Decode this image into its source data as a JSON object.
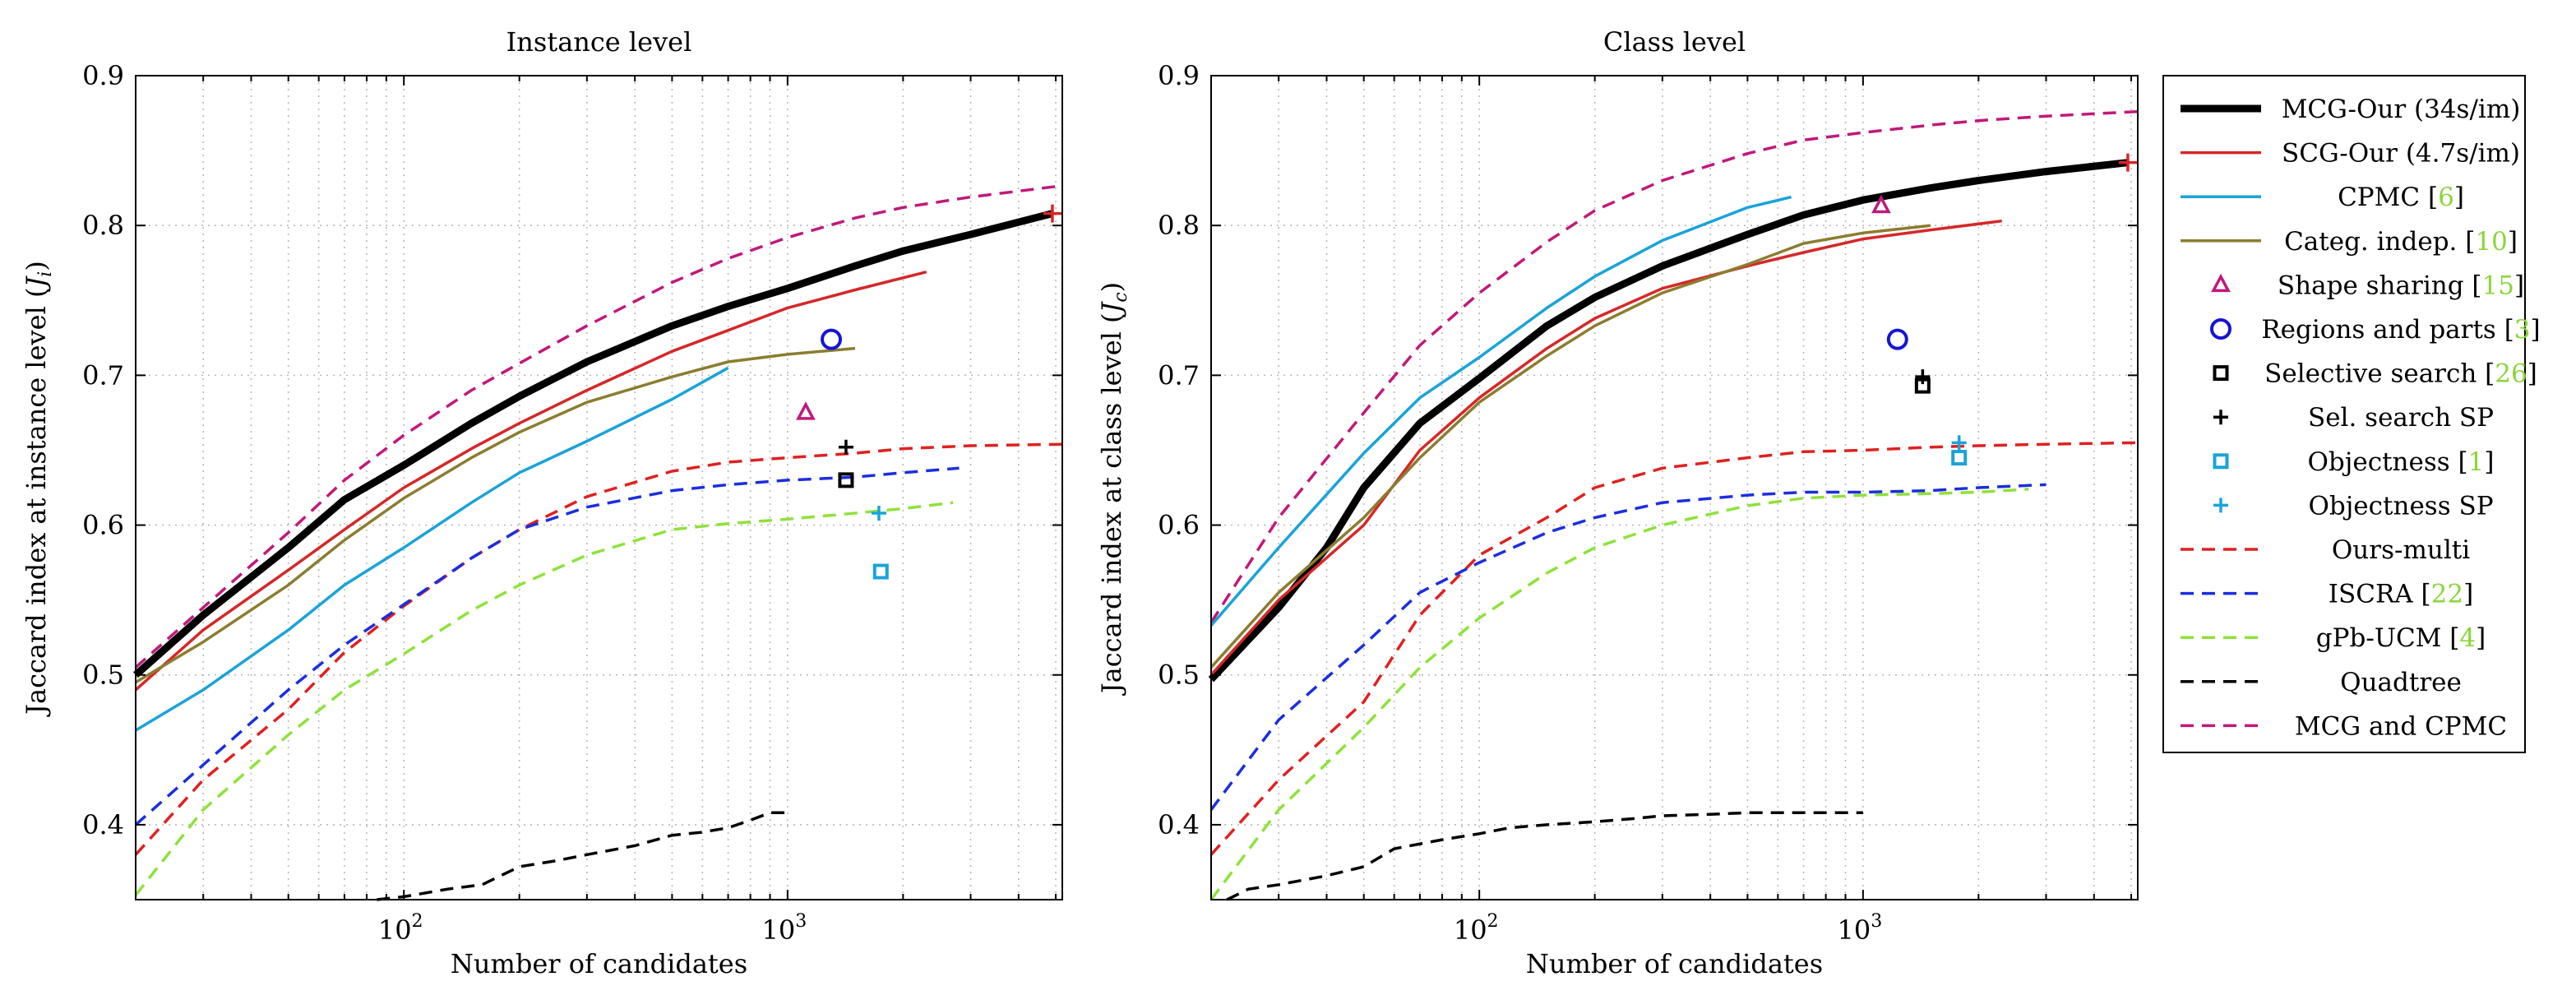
{
  "chart_data": {
    "type": "line",
    "xscale": "log",
    "xlim": [
      20,
      5200
    ],
    "ylim": [
      0.35,
      0.9
    ],
    "xticks": [
      100,
      1000
    ],
    "xtick_labels": [
      {
        "base": "10",
        "exp": "2"
      },
      {
        "base": "10",
        "exp": "3"
      }
    ],
    "yticks": [
      0.4,
      0.5,
      0.6,
      0.7,
      0.8,
      0.9
    ],
    "ytick_labels": [
      "0.4",
      "0.5",
      "0.6",
      "0.7",
      "0.8",
      "0.9"
    ],
    "grid": "dotted",
    "legend_position": "outside-right",
    "legend": [
      {
        "key": "mcg",
        "text": "MCG-Our (34s/im)",
        "cite": "",
        "cite_color": "#8ad53a",
        "color": "#000000",
        "style": "thick"
      },
      {
        "key": "scg",
        "text": "SCG-Our (4.7s/im)",
        "cite": "",
        "cite_color": "#8ad53a",
        "color": "#d62728",
        "style": "solid"
      },
      {
        "key": "cpmc",
        "text": "CPMC",
        "cite": "6",
        "cite_color": "#8ad53a",
        "color": "#1aa3d9",
        "style": "solid"
      },
      {
        "key": "categ",
        "text": "Categ. indep.",
        "cite": "10",
        "cite_color": "#8ad53a",
        "color": "#8b7d2f",
        "style": "solid"
      },
      {
        "key": "shape",
        "text": "Shape sharing",
        "cite": "15",
        "cite_color": "#8ad53a",
        "color": "#c1187c",
        "style": "triangle"
      },
      {
        "key": "regions",
        "text": "Regions and parts",
        "cite": "3",
        "cite_color": "#8ad53a",
        "color": "#1515d6",
        "style": "circle"
      },
      {
        "key": "selsearch",
        "text": "Selective search",
        "cite": "26",
        "cite_color": "#8ad53a",
        "color": "#000000",
        "style": "square"
      },
      {
        "key": "selsp",
        "text": "Sel. search SP",
        "cite": "",
        "cite_color": "#8ad53a",
        "color": "#000000",
        "style": "plus"
      },
      {
        "key": "objness",
        "text": "Objectness",
        "cite": "1",
        "cite_color": "#8ad53a",
        "color": "#1aa3d9",
        "style": "square"
      },
      {
        "key": "objsp",
        "text": "Objectness SP",
        "cite": "",
        "cite_color": "#8ad53a",
        "color": "#1aa3d9",
        "style": "plus"
      },
      {
        "key": "multi",
        "text": "Ours-multi",
        "cite": "",
        "cite_color": "#8ad53a",
        "color": "#e02020",
        "style": "dashed"
      },
      {
        "key": "iscra",
        "text": "ISCRA",
        "cite": "22",
        "cite_color": "#8ad53a",
        "color": "#1a2ee0",
        "style": "dashed"
      },
      {
        "key": "gpb",
        "text": "gPb-UCM",
        "cite": "4",
        "cite_color": "#8ad53a",
        "color": "#8ee23a",
        "style": "dashed"
      },
      {
        "key": "quadtree",
        "text": "Quadtree",
        "cite": "",
        "cite_color": "#8ad53a",
        "color": "#000000",
        "style": "dashed"
      },
      {
        "key": "mcgcpmc",
        "text": "MCG and CPMC",
        "cite": "",
        "cite_color": "#8ad53a",
        "color": "#c2187a",
        "style": "dashed"
      }
    ],
    "panels": [
      {
        "title": "Instance level",
        "xlabel": "Number of candidates",
        "ylabel": "Jaccard index at instance level (",
        "ylabel_sym": "J",
        "ylabel_sub": "i",
        "series": [
          {
            "key": "mcgcpmc",
            "x": [
              20,
              30,
              50,
              70,
              100,
              150,
              200,
              300,
              500,
              700,
              1000,
              1500,
              2000,
              3000,
              5000,
              5200
            ],
            "y": [
              0.505,
              0.545,
              0.595,
              0.63,
              0.66,
              0.69,
              0.708,
              0.733,
              0.762,
              0.778,
              0.792,
              0.805,
              0.812,
              0.819,
              0.826,
              0.827
            ]
          },
          {
            "key": "mcg",
            "x": [
              20,
              30,
              50,
              70,
              100,
              150,
              200,
              300,
              500,
              700,
              1000,
              1500,
              2000,
              3000,
              4900
            ],
            "y": [
              0.5,
              0.54,
              0.585,
              0.617,
              0.64,
              0.668,
              0.686,
              0.709,
              0.733,
              0.746,
              0.758,
              0.773,
              0.783,
              0.794,
              0.808
            ]
          },
          {
            "key": "scg",
            "x": [
              20,
              30,
              50,
              70,
              100,
              150,
              200,
              300,
              500,
              700,
              1000,
              1500,
              2300
            ],
            "y": [
              0.49,
              0.53,
              0.57,
              0.597,
              0.625,
              0.651,
              0.668,
              0.69,
              0.716,
              0.73,
              0.745,
              0.757,
              0.769
            ]
          },
          {
            "key": "categ",
            "x": [
              20,
              30,
              50,
              70,
              100,
              150,
              200,
              300,
              500,
              700,
              1000,
              1500
            ],
            "y": [
              0.495,
              0.522,
              0.56,
              0.59,
              0.618,
              0.645,
              0.662,
              0.682,
              0.699,
              0.709,
              0.714,
              0.718
            ]
          },
          {
            "key": "cpmc",
            "x": [
              20,
              30,
              50,
              70,
              100,
              150,
              200,
              300,
              500,
              700
            ],
            "y": [
              0.463,
              0.49,
              0.53,
              0.56,
              0.585,
              0.615,
              0.635,
              0.656,
              0.684,
              0.705
            ]
          },
          {
            "key": "multi",
            "x": [
              20,
              30,
              50,
              70,
              100,
              150,
              200,
              300,
              500,
              700,
              1000,
              1500,
              2000,
              3000,
              5200
            ],
            "y": [
              0.38,
              0.43,
              0.477,
              0.515,
              0.546,
              0.578,
              0.597,
              0.619,
              0.636,
              0.642,
              0.645,
              0.648,
              0.651,
              0.653,
              0.654
            ]
          },
          {
            "key": "iscra",
            "x": [
              20,
              30,
              50,
              70,
              100,
              150,
              200,
              300,
              500,
              700,
              1000,
              1500,
              2000,
              2800
            ],
            "y": [
              0.4,
              0.44,
              0.49,
              0.52,
              0.547,
              0.578,
              0.597,
              0.612,
              0.623,
              0.627,
              0.63,
              0.632,
              0.635,
              0.638
            ]
          },
          {
            "key": "gpb",
            "x": [
              20,
              30,
              50,
              70,
              100,
              150,
              200,
              300,
              500,
              700,
              1000,
              1500,
              2000,
              2700
            ],
            "y": [
              0.353,
              0.41,
              0.46,
              0.49,
              0.514,
              0.543,
              0.56,
              0.58,
              0.597,
              0.601,
              0.604,
              0.608,
              0.611,
              0.615
            ]
          },
          {
            "key": "quadtree",
            "x": [
              85,
              100,
              130,
              160,
              200,
              250,
              300,
              400,
              500,
              600,
              700,
              800,
              900,
              1000
            ],
            "y": [
              0.35,
              0.352,
              0.357,
              0.36,
              0.372,
              0.376,
              0.38,
              0.386,
              0.393,
              0.395,
              0.398,
              0.403,
              0.408,
              0.408
            ]
          }
        ],
        "markers": [
          {
            "key": "shape",
            "x": 1115,
            "y": 0.675
          },
          {
            "key": "regions",
            "x": 1300,
            "y": 0.724
          },
          {
            "key": "selsp",
            "x": 1420,
            "y": 0.652
          },
          {
            "key": "selsearch",
            "x": 1420,
            "y": 0.63
          },
          {
            "key": "objsp",
            "x": 1730,
            "y": 0.608
          },
          {
            "key": "objness",
            "x": 1750,
            "y": 0.569
          },
          {
            "key": "scg",
            "x": 4900,
            "y": 0.808
          }
        ]
      },
      {
        "title": "Class level",
        "xlabel": "Number of candidates",
        "ylabel": "Jaccard index at class level (",
        "ylabel_sym": "J",
        "ylabel_sub": "c",
        "series": [
          {
            "key": "mcgcpmc",
            "x": [
              20,
              30,
              50,
              70,
              100,
              150,
              200,
              300,
              500,
              700,
              1000,
              1500,
              2000,
              3000,
              5200
            ],
            "y": [
              0.535,
              0.605,
              0.675,
              0.72,
              0.755,
              0.789,
              0.81,
              0.83,
              0.848,
              0.857,
              0.862,
              0.867,
              0.87,
              0.873,
              0.876
            ]
          },
          {
            "key": "cpmc",
            "x": [
              20,
              30,
              50,
              70,
              100,
              150,
              200,
              300,
              500,
              650
            ],
            "y": [
              0.533,
              0.585,
              0.648,
              0.685,
              0.712,
              0.745,
              0.766,
              0.79,
              0.812,
              0.819
            ]
          },
          {
            "key": "mcg",
            "x": [
              20,
              30,
              40,
              50,
              70,
              100,
              150,
              200,
              300,
              500,
              700,
              1000,
              1500,
              2000,
              3000,
              4900
            ],
            "y": [
              0.497,
              0.545,
              0.585,
              0.625,
              0.668,
              0.698,
              0.733,
              0.752,
              0.773,
              0.794,
              0.807,
              0.817,
              0.825,
              0.83,
              0.836,
              0.842
            ]
          },
          {
            "key": "scg",
            "x": [
              20,
              30,
              50,
              70,
              100,
              150,
              200,
              300,
              500,
              700,
              1000,
              1500,
              2300
            ],
            "y": [
              0.5,
              0.55,
              0.6,
              0.65,
              0.685,
              0.718,
              0.738,
              0.758,
              0.773,
              0.782,
              0.791,
              0.797,
              0.803
            ]
          },
          {
            "key": "categ",
            "x": [
              20,
              30,
              50,
              70,
              100,
              150,
              200,
              300,
              500,
              700,
              1000,
              1500
            ],
            "y": [
              0.505,
              0.555,
              0.605,
              0.645,
              0.682,
              0.713,
              0.733,
              0.755,
              0.774,
              0.788,
              0.795,
              0.8
            ]
          },
          {
            "key": "multi",
            "x": [
              20,
              30,
              50,
              70,
              100,
              150,
              200,
              300,
              500,
              700,
              1000,
              1500,
              2000,
              3000,
              5200
            ],
            "y": [
              0.38,
              0.43,
              0.482,
              0.54,
              0.58,
              0.605,
              0.625,
              0.638,
              0.645,
              0.649,
              0.65,
              0.652,
              0.653,
              0.654,
              0.655
            ]
          },
          {
            "key": "iscra",
            "x": [
              20,
              30,
              50,
              70,
              100,
              150,
              200,
              300,
              500,
              700,
              1000,
              1500,
              2000,
              3000
            ],
            "y": [
              0.41,
              0.47,
              0.52,
              0.555,
              0.575,
              0.595,
              0.605,
              0.615,
              0.62,
              0.622,
              0.622,
              0.623,
              0.625,
              0.627
            ]
          },
          {
            "key": "gpb",
            "x": [
              20,
              30,
              50,
              70,
              100,
              150,
              200,
              300,
              500,
              700,
              1000,
              1500,
              2000,
              2700
            ],
            "y": [
              0.35,
              0.41,
              0.465,
              0.505,
              0.538,
              0.568,
              0.585,
              0.6,
              0.613,
              0.618,
              0.62,
              0.621,
              0.622,
              0.624
            ]
          },
          {
            "key": "quadtree",
            "x": [
              22,
              25,
              30,
              40,
              50,
              60,
              80,
              100,
              120,
              150,
              200,
              250,
              300,
              400,
              500,
              600,
              700,
              800,
              1000
            ],
            "y": [
              0.35,
              0.357,
              0.36,
              0.366,
              0.372,
              0.384,
              0.39,
              0.394,
              0.398,
              0.4,
              0.402,
              0.404,
              0.406,
              0.407,
              0.408,
              0.408,
              0.408,
              0.408,
              0.408
            ]
          }
        ],
        "markers": [
          {
            "key": "shape",
            "x": 1115,
            "y": 0.813
          },
          {
            "key": "regions",
            "x": 1230,
            "y": 0.724
          },
          {
            "key": "selsp",
            "x": 1430,
            "y": 0.699
          },
          {
            "key": "selsearch",
            "x": 1430,
            "y": 0.693
          },
          {
            "key": "objsp",
            "x": 1780,
            "y": 0.655
          },
          {
            "key": "objness",
            "x": 1780,
            "y": 0.645
          },
          {
            "key": "scg",
            "x": 4900,
            "y": 0.842
          }
        ]
      }
    ]
  }
}
